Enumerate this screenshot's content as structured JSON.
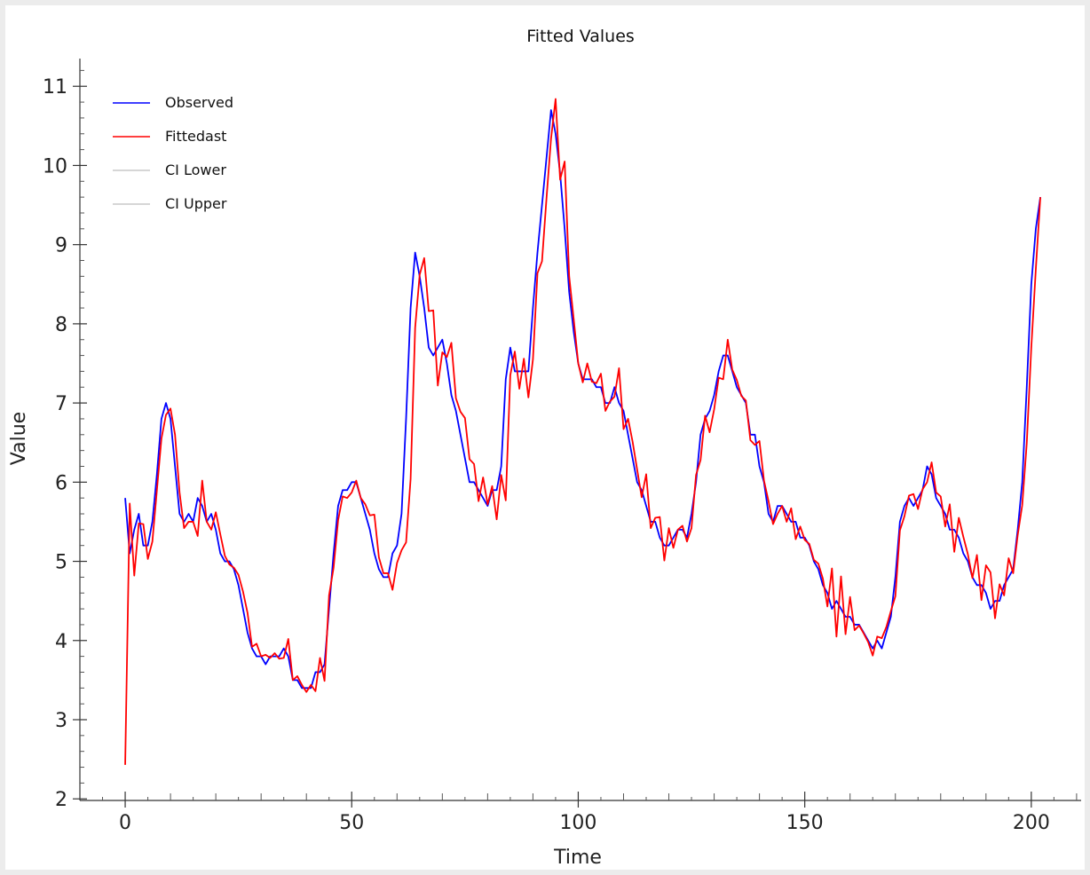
{
  "chart_data": {
    "type": "line",
    "title": "Fitted Values",
    "xlabel": "Time",
    "ylabel": "Value",
    "xlim": [
      -10,
      211
    ],
    "ylim": [
      1.98,
      11.35
    ],
    "xticks": [
      0,
      50,
      100,
      150,
      200
    ],
    "yticks": [
      2,
      3,
      4,
      5,
      6,
      7,
      8,
      9,
      10,
      11
    ],
    "grid": false,
    "legend_position": "top-left",
    "legend": [
      {
        "label": "Observed",
        "color": "#0000ff"
      },
      {
        "label": "Fittedast",
        "color": "#ff0000"
      },
      {
        "label": "CI Lower",
        "color": "#c8c8c8"
      },
      {
        "label": "CI Upper",
        "color": "#c8c8c8"
      }
    ],
    "series": [
      {
        "name": "Observed",
        "color": "#0000ff",
        "values": [
          5.8,
          5.1,
          5.4,
          5.6,
          5.2,
          5.2,
          5.5,
          6.1,
          6.8,
          7.0,
          6.8,
          6.2,
          5.6,
          5.5,
          5.6,
          5.5,
          5.8,
          5.7,
          5.5,
          5.6,
          5.4,
          5.1,
          5.0,
          5.0,
          4.9,
          4.7,
          4.4,
          4.1,
          3.9,
          3.8,
          3.8,
          3.7,
          3.8,
          3.8,
          3.8,
          3.9,
          3.8,
          3.5,
          3.5,
          3.4,
          3.4,
          3.4,
          3.6,
          3.6,
          3.7,
          4.4,
          5.1,
          5.7,
          5.9,
          5.9,
          6.0,
          6.0,
          5.8,
          5.6,
          5.4,
          5.1,
          4.9,
          4.8,
          4.8,
          5.1,
          5.2,
          5.6,
          6.8,
          8.2,
          8.9,
          8.6,
          8.2,
          7.7,
          7.6,
          7.7,
          7.8,
          7.5,
          7.1,
          6.9,
          6.6,
          6.3,
          6.0,
          6.0,
          5.9,
          5.8,
          5.7,
          5.9,
          5.9,
          6.2,
          7.3,
          7.7,
          7.4,
          7.4,
          7.4,
          7.4,
          8.2,
          8.9,
          9.5,
          10.1,
          10.7,
          10.4,
          9.9,
          9.2,
          8.4,
          7.9,
          7.5,
          7.3,
          7.3,
          7.3,
          7.2,
          7.2,
          7.0,
          7.0,
          7.2,
          7.0,
          6.9,
          6.6,
          6.3,
          6.0,
          5.9,
          5.7,
          5.5,
          5.5,
          5.3,
          5.2,
          5.2,
          5.3,
          5.4,
          5.4,
          5.3,
          5.6,
          6.0,
          6.6,
          6.8,
          6.9,
          7.1,
          7.4,
          7.6,
          7.6,
          7.4,
          7.2,
          7.1,
          7.0,
          6.6,
          6.6,
          6.2,
          6.0,
          5.6,
          5.5,
          5.7,
          5.7,
          5.6,
          5.5,
          5.5,
          5.3,
          5.3,
          5.2,
          5.0,
          4.9,
          4.7,
          4.6,
          4.4,
          4.5,
          4.4,
          4.3,
          4.3,
          4.2,
          4.2,
          4.1,
          4.0,
          3.9,
          4.0,
          3.9,
          4.1,
          4.3,
          4.8,
          5.5,
          5.7,
          5.8,
          5.7,
          5.8,
          5.9,
          6.2,
          6.1,
          5.8,
          5.7,
          5.6,
          5.4,
          5.4,
          5.3,
          5.1,
          5.0,
          4.8,
          4.7,
          4.7,
          4.6,
          4.4,
          4.5,
          4.5,
          4.7,
          4.8,
          4.9,
          5.4,
          6.0,
          7.2,
          8.5,
          9.2,
          9.6
        ]
      },
      {
        "name": "Fittedast",
        "color": "#ff0000",
        "values": [
          2.43,
          5.73,
          4.82,
          5.48,
          5.47,
          5.03,
          5.25,
          5.9,
          6.55,
          6.85,
          6.93,
          6.6,
          5.87,
          5.42,
          5.5,
          5.5,
          5.32,
          6.02,
          5.5,
          5.4,
          5.62,
          5.34,
          5.07,
          4.96,
          4.92,
          4.83,
          4.62,
          4.35,
          3.92,
          3.96,
          3.8,
          3.82,
          3.78,
          3.84,
          3.77,
          3.78,
          4.02,
          3.5,
          3.55,
          3.44,
          3.35,
          3.44,
          3.36,
          3.78,
          3.49,
          4.57,
          4.92,
          5.52,
          5.82,
          5.8,
          5.87,
          6.02,
          5.8,
          5.72,
          5.58,
          5.59,
          5.05,
          4.85,
          4.85,
          4.64,
          4.98,
          5.14,
          5.24,
          6.04,
          7.95,
          8.62,
          8.83,
          8.16,
          8.17,
          7.22,
          7.64,
          7.58,
          7.76,
          7.06,
          6.89,
          6.81,
          6.29,
          6.23,
          5.76,
          6.06,
          5.72,
          5.95,
          5.53,
          6.09,
          5.77,
          7.35,
          7.65,
          7.18,
          7.56,
          7.07,
          7.55,
          8.64,
          8.79,
          9.59,
          10.34,
          10.84,
          9.82,
          10.05,
          8.6,
          8.06,
          7.5,
          7.26,
          7.5,
          7.27,
          7.25,
          7.37,
          6.9,
          7.02,
          7.08,
          7.44,
          6.67,
          6.8,
          6.51,
          6.16,
          5.81,
          6.1,
          5.42,
          5.55,
          5.56,
          5.01,
          5.42,
          5.17,
          5.4,
          5.45,
          5.25,
          5.42,
          6.09,
          6.28,
          6.84,
          6.63,
          6.92,
          7.32,
          7.3,
          7.8,
          7.42,
          7.29,
          7.09,
          7.03,
          6.53,
          6.47,
          6.52,
          6.02,
          5.76,
          5.47,
          5.6,
          5.7,
          5.5,
          5.67,
          5.28,
          5.44,
          5.27,
          5.22,
          5.02,
          4.97,
          4.78,
          4.43,
          4.91,
          4.05,
          4.81,
          4.08,
          4.55,
          4.13,
          4.19,
          4.09,
          3.98,
          3.81,
          4.05,
          4.03,
          4.17,
          4.37,
          4.56,
          5.39,
          5.57,
          5.83,
          5.85,
          5.66,
          5.91,
          6.0,
          6.25,
          5.87,
          5.82,
          5.44,
          5.72,
          5.12,
          5.55,
          5.31,
          5.09,
          4.79,
          5.08,
          4.51,
          4.95,
          4.86,
          4.28,
          4.71,
          4.57,
          5.04,
          4.85,
          5.33,
          5.71,
          6.49,
          7.7,
          8.69,
          9.6
        ]
      }
    ]
  }
}
